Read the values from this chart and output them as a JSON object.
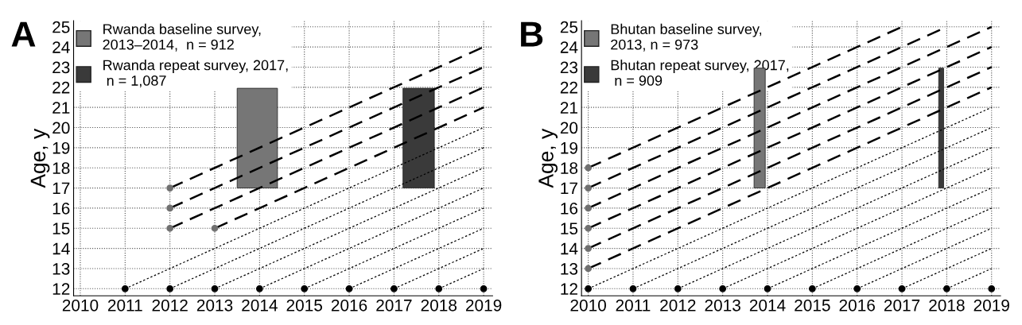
{
  "chart_data": [
    {
      "type": "line",
      "title": "A",
      "ylabel": "Age, y",
      "xlim": [
        2009.85,
        2019.2
      ],
      "ylim": [
        11.65,
        25.3
      ],
      "xticks": [
        2010,
        2011,
        2012,
        2013,
        2014,
        2015,
        2016,
        2017,
        2018,
        2019
      ],
      "yticks": [
        12,
        13,
        14,
        15,
        16,
        17,
        18,
        19,
        20,
        21,
        22,
        23,
        24,
        25
      ],
      "grid": true,
      "legend": "top left",
      "series": [
        {
          "type": "area",
          "name": "Rwanda baseline survey,\n2013–2014,  n = 912",
          "color": "#767676",
          "x": [
            2013.5,
            2014.4,
            2014.4,
            2013.5
          ],
          "values": [
            17,
            17,
            21.95,
            21.95
          ]
        },
        {
          "type": "area",
          "name": "Rwanda repeat survey, 2017,\n n = 1,087",
          "color": "#3a3a3a",
          "x": [
            2017.2,
            2017.9,
            2017.9,
            2017.2
          ],
          "values": [
            17,
            17,
            21.95,
            21.95
          ]
        },
        {
          "line_style": "dashed",
          "color": "#000000",
          "x": [
            2012,
            2019
          ],
          "values": [
            17,
            24
          ]
        },
        {
          "line_style": "dashed",
          "color": "#000000",
          "x": [
            2012,
            2019
          ],
          "values": [
            16,
            23
          ]
        },
        {
          "line_style": "dashed",
          "color": "#000000",
          "x": [
            2012,
            2019
          ],
          "values": [
            15,
            22
          ]
        },
        {
          "line_style": "dashed",
          "color": "#000000",
          "x": [
            2013,
            2019
          ],
          "values": [
            15,
            21
          ]
        },
        {
          "line_style": "dotted",
          "color": "#000000",
          "x": [
            2011,
            2019
          ],
          "values": [
            12,
            20
          ]
        },
        {
          "line_style": "dotted",
          "color": "#000000",
          "x": [
            2012,
            2019
          ],
          "values": [
            12,
            19
          ]
        },
        {
          "line_style": "dotted",
          "color": "#000000",
          "x": [
            2013,
            2019
          ],
          "values": [
            12,
            18
          ]
        },
        {
          "line_style": "dotted",
          "color": "#000000",
          "x": [
            2014,
            2019
          ],
          "values": [
            12,
            17
          ]
        },
        {
          "line_style": "dotted",
          "color": "#000000",
          "x": [
            2015,
            2019
          ],
          "values": [
            12,
            16
          ]
        },
        {
          "line_style": "dotted",
          "color": "#000000",
          "x": [
            2016,
            2019
          ],
          "values": [
            12,
            15
          ]
        },
        {
          "line_style": "dotted",
          "color": "#000000",
          "x": [
            2017,
            2019
          ],
          "values": [
            12,
            14
          ]
        },
        {
          "line_style": "dotted",
          "color": "#000000",
          "x": [
            2018,
            2019
          ],
          "values": [
            12,
            13
          ]
        },
        {
          "type": "scatter",
          "marker": "circle",
          "color": "#707070",
          "x": [
            2012,
            2012,
            2012,
            2013
          ],
          "values": [
            17,
            16,
            15,
            15
          ]
        },
        {
          "type": "scatter",
          "marker": "circle",
          "color": "#000000",
          "x": [
            2011,
            2012,
            2013,
            2014,
            2015,
            2016,
            2017,
            2018,
            2019
          ],
          "values": [
            12,
            12,
            12,
            12,
            12,
            12,
            12,
            12,
            12
          ]
        }
      ]
    },
    {
      "type": "line",
      "title": "B",
      "ylabel": "Age, y",
      "xlim": [
        2009.85,
        2019.2
      ],
      "ylim": [
        11.65,
        25.3
      ],
      "xticks": [
        2010,
        2011,
        2012,
        2013,
        2014,
        2015,
        2016,
        2017,
        2018,
        2019
      ],
      "yticks": [
        12,
        13,
        14,
        15,
        16,
        17,
        18,
        19,
        20,
        21,
        22,
        23,
        24,
        25
      ],
      "grid": true,
      "legend": "top left",
      "series": [
        {
          "type": "area",
          "name": "Bhutan baseline survey,\n2013, n = 973",
          "color": "#767676",
          "x": [
            2013.7,
            2013.95,
            2013.95,
            2013.7
          ],
          "values": [
            17,
            17,
            22.95,
            22.95
          ]
        },
        {
          "type": "area",
          "name": "Bhutan repeat survey, 2017,\n n = 909",
          "color": "#3a3a3a",
          "x": [
            2017.82,
            2017.93,
            2017.93,
            2017.82
          ],
          "values": [
            17,
            17,
            22.95,
            22.95
          ]
        },
        {
          "line_style": "dashed",
          "color": "#000000",
          "x": [
            2010,
            2017
          ],
          "values": [
            18,
            25
          ]
        },
        {
          "line_style": "dashed",
          "color": "#000000",
          "x": [
            2010,
            2018
          ],
          "values": [
            17,
            25
          ]
        },
        {
          "line_style": "dashed",
          "color": "#000000",
          "x": [
            2010,
            2019
          ],
          "values": [
            16,
            25
          ]
        },
        {
          "line_style": "dashed",
          "color": "#000000",
          "x": [
            2010,
            2019
          ],
          "values": [
            15,
            24
          ]
        },
        {
          "line_style": "dashed",
          "color": "#000000",
          "x": [
            2010,
            2019
          ],
          "values": [
            14,
            23
          ]
        },
        {
          "line_style": "dashed",
          "color": "#000000",
          "x": [
            2010,
            2019
          ],
          "values": [
            13,
            22
          ]
        },
        {
          "line_style": "dotted",
          "color": "#000000",
          "x": [
            2010,
            2019
          ],
          "values": [
            12,
            21
          ]
        },
        {
          "line_style": "dotted",
          "color": "#000000",
          "x": [
            2011,
            2019
          ],
          "values": [
            12,
            20
          ]
        },
        {
          "line_style": "dotted",
          "color": "#000000",
          "x": [
            2012,
            2019
          ],
          "values": [
            12,
            19
          ]
        },
        {
          "line_style": "dotted",
          "color": "#000000",
          "x": [
            2013,
            2019
          ],
          "values": [
            12,
            18
          ]
        },
        {
          "line_style": "dotted",
          "color": "#000000",
          "x": [
            2014,
            2019
          ],
          "values": [
            12,
            17
          ]
        },
        {
          "line_style": "dotted",
          "color": "#000000",
          "x": [
            2015,
            2019
          ],
          "values": [
            12,
            16
          ]
        },
        {
          "line_style": "dotted",
          "color": "#000000",
          "x": [
            2016,
            2019
          ],
          "values": [
            12,
            15
          ]
        },
        {
          "line_style": "dotted",
          "color": "#000000",
          "x": [
            2017,
            2019
          ],
          "values": [
            12,
            14
          ]
        },
        {
          "line_style": "dotted",
          "color": "#000000",
          "x": [
            2018,
            2019
          ],
          "values": [
            12,
            13
          ]
        },
        {
          "type": "scatter",
          "marker": "circle",
          "color": "#707070",
          "x": [
            2010,
            2010,
            2010,
            2010,
            2010,
            2010
          ],
          "values": [
            18,
            17,
            16,
            15,
            14,
            13
          ]
        },
        {
          "type": "scatter",
          "marker": "circle",
          "color": "#000000",
          "x": [
            2010,
            2011,
            2012,
            2013,
            2014,
            2015,
            2016,
            2017,
            2018,
            2019
          ],
          "values": [
            12,
            12,
            12,
            12,
            12,
            12,
            12,
            12,
            12,
            12
          ]
        }
      ]
    }
  ]
}
